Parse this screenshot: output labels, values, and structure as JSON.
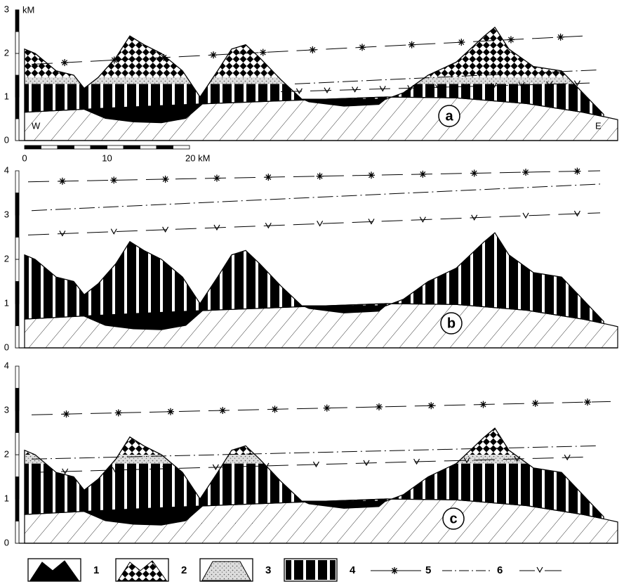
{
  "panels": [
    {
      "label": "a",
      "unit": "kM",
      "ticks": [
        "3",
        "2",
        "1",
        "0"
      ],
      "west": "W",
      "east": "E",
      "scale_bar": [
        "0",
        "10",
        "20 kM"
      ]
    },
    {
      "label": "b",
      "ticks": [
        "4",
        "3",
        "2",
        "1",
        "0"
      ]
    },
    {
      "label": "c",
      "ticks": [
        "4",
        "3",
        "2",
        "1",
        "0"
      ]
    }
  ],
  "legend": [
    "1",
    "2",
    "3",
    "4",
    "5",
    "6"
  ]
}
